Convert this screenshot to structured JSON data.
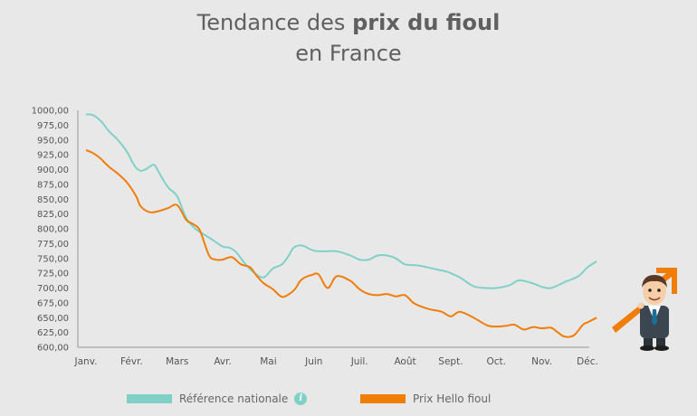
{
  "title": {
    "line1_pre": "Tendance des ",
    "line1_bold": "prix du fioul",
    "line2": "en France"
  },
  "legend": {
    "national_label": "Référence nationale",
    "hello_label": "Prix Hello fioul",
    "info_icon": "info-icon"
  },
  "colors": {
    "national": "#7fd1c7",
    "hello": "#f07d06",
    "axis": "#999999"
  },
  "chart_data": {
    "type": "line",
    "ylim": [
      600,
      1000
    ],
    "yticks": [
      "1000,00",
      "975,00",
      "950,00",
      "925,00",
      "900,00",
      "875,00",
      "850,00",
      "825,00",
      "800,00",
      "775,00",
      "750,00",
      "725,00",
      "700,00",
      "675,00",
      "650,00",
      "625,00",
      "600,00"
    ],
    "ytick_values": [
      1000,
      975,
      950,
      925,
      900,
      875,
      850,
      825,
      800,
      775,
      750,
      725,
      700,
      675,
      650,
      625,
      600
    ],
    "months": [
      "Janv.",
      "Févr.",
      "Mars",
      "Avr.",
      "Mai",
      "Juin",
      "Juil.",
      "Août",
      "Sept.",
      "Oct.",
      "Nov.",
      "Déc."
    ],
    "series": [
      {
        "name": "Référence nationale",
        "x": [
          0,
          0.1,
          0.2,
          0.35,
          0.5,
          0.7,
          0.9,
          1.0,
          1.1,
          1.2,
          1.3,
          1.4,
          1.5,
          1.6,
          1.8,
          2.0,
          2.2,
          2.4,
          2.6,
          2.8,
          3.0,
          3.15,
          3.3,
          3.5,
          3.7,
          3.9,
          4.1,
          4.3,
          4.45,
          4.55,
          4.7,
          4.8,
          5.0,
          5.2,
          5.5,
          5.8,
          6.0,
          6.2,
          6.4,
          6.6,
          6.8,
          7.0,
          7.3,
          7.6,
          7.9,
          8.0,
          8.2,
          8.5,
          8.8,
          9.0,
          9.3,
          9.5,
          9.8,
          10.0,
          10.2,
          10.5,
          10.8,
          11.0,
          11.2
        ],
        "y": [
          993,
          993,
          990,
          980,
          965,
          950,
          930,
          915,
          903,
          898,
          900,
          905,
          908,
          895,
          870,
          855,
          818,
          800,
          790,
          780,
          770,
          768,
          760,
          740,
          725,
          718,
          733,
          740,
          755,
          768,
          772,
          770,
          763,
          762,
          762,
          755,
          748,
          748,
          755,
          755,
          750,
          740,
          738,
          733,
          728,
          725,
          718,
          703,
          700,
          700,
          705,
          713,
          708,
          702,
          700,
          710,
          720,
          735,
          745
        ]
      },
      {
        "name": "Prix Hello fioul",
        "x": [
          0,
          0.15,
          0.3,
          0.5,
          0.7,
          0.9,
          1.1,
          1.2,
          1.4,
          1.6,
          1.8,
          2.0,
          2.2,
          2.35,
          2.5,
          2.7,
          2.85,
          3.0,
          3.2,
          3.4,
          3.6,
          3.75,
          3.9,
          4.1,
          4.3,
          4.5,
          4.6,
          4.7,
          4.8,
          4.95,
          5.1,
          5.3,
          5.5,
          5.8,
          6.0,
          6.2,
          6.4,
          6.6,
          6.8,
          7.0,
          7.2,
          7.5,
          7.8,
          8.0,
          8.2,
          8.5,
          8.8,
          9.0,
          9.2,
          9.4,
          9.6,
          9.8,
          10.0,
          10.2,
          10.35,
          10.5,
          10.7,
          10.9,
          11.0,
          11.2
        ],
        "y": [
          933,
          928,
          920,
          905,
          893,
          878,
          855,
          838,
          828,
          830,
          835,
          840,
          815,
          808,
          797,
          755,
          748,
          748,
          752,
          740,
          735,
          720,
          708,
          698,
          685,
          692,
          700,
          712,
          718,
          722,
          723,
          700,
          720,
          712,
          698,
          690,
          688,
          690,
          686,
          688,
          674,
          665,
          660,
          652,
          660,
          650,
          637,
          635,
          636,
          638,
          630,
          634,
          632,
          633,
          625,
          618,
          620,
          638,
          642,
          650
        ]
      }
    ]
  }
}
